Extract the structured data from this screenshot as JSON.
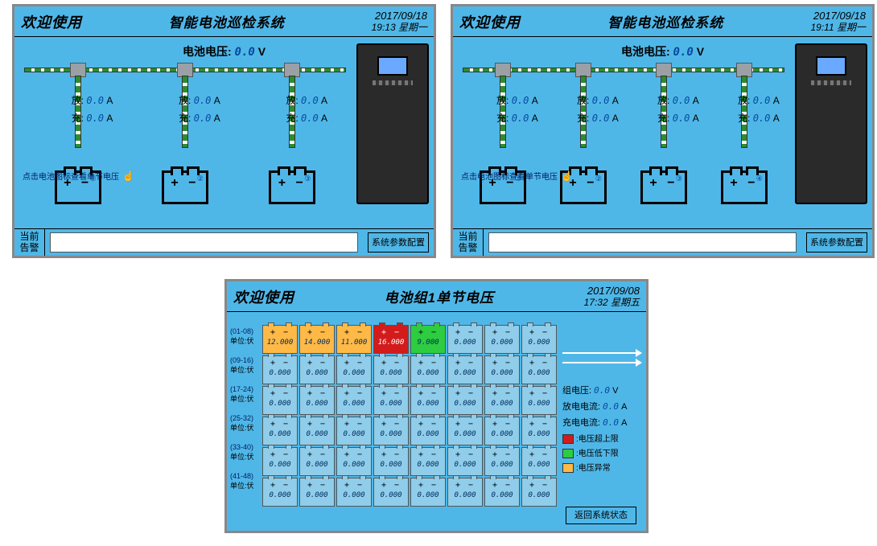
{
  "colors": {
    "panel_bg": "#4fb7e8",
    "bus_green": "#2e8b2e",
    "value_blue": "#064aa0",
    "warn": "#ffb947",
    "hi": "#d31b1b",
    "lo": "#2ecc40"
  },
  "panelA": {
    "welcome": "欢迎使用",
    "sysname": "智能电池巡检系统",
    "date": "2017/09/18",
    "time": "19:13",
    "weekday": "星期一",
    "voltage_label": "电池电压:",
    "voltage_value": "0.0",
    "voltage_unit": "V",
    "branch_count": 3,
    "branches": [
      {
        "idx": "①",
        "discharge_label": "放:",
        "discharge": "0.0",
        "charge_label": "充:",
        "charge": "0.0",
        "unit": "A"
      },
      {
        "idx": "②",
        "discharge_label": "放:",
        "discharge": "0.0",
        "charge_label": "充:",
        "charge": "0.0",
        "unit": "A"
      },
      {
        "idx": "③",
        "discharge_label": "放:",
        "discharge": "0.0",
        "charge_label": "充:",
        "charge": "0.0",
        "unit": "A"
      }
    ],
    "hint": "点击电池图标查看单节电压",
    "alarm_label_1": "当前",
    "alarm_label_2": "告警",
    "cfg_btn": "系统参数配置"
  },
  "panelB": {
    "welcome": "欢迎使用",
    "sysname": "智能电池巡检系统",
    "date": "2017/09/18",
    "time": "19:11",
    "weekday": "星期一",
    "voltage_label": "电池电压:",
    "voltage_value": "0.0",
    "voltage_unit": "V",
    "branch_count": 4,
    "branches": [
      {
        "idx": "①",
        "discharge_label": "放:",
        "discharge": "0.0",
        "charge_label": "充:",
        "charge": "0.0",
        "unit": "A"
      },
      {
        "idx": "②",
        "discharge_label": "放:",
        "discharge": "0.0",
        "charge_label": "充:",
        "charge": "0.0",
        "unit": "A"
      },
      {
        "idx": "③",
        "discharge_label": "放:",
        "discharge": "0.0",
        "charge_label": "充:",
        "charge": "0.0",
        "unit": "A"
      },
      {
        "idx": "④",
        "discharge_label": "放:",
        "discharge": "0.0",
        "charge_label": "充:",
        "charge": "0.0",
        "unit": "A"
      }
    ],
    "hint": "点击电池图标查看单节电压",
    "alarm_label_1": "当前",
    "alarm_label_2": "告警",
    "cfg_btn": "系统参数配置"
  },
  "panelC": {
    "welcome": "欢迎使用",
    "sysname": "电池组1单节电压",
    "date": "2017/09/08",
    "time": "17:32",
    "weekday": "星期五",
    "row_labels": [
      {
        "range": "(01-08)",
        "unit": "单位:伏"
      },
      {
        "range": "(09-16)",
        "unit": "单位:伏"
      },
      {
        "range": "(17-24)",
        "unit": "单位:伏"
      },
      {
        "range": "(25-32)",
        "unit": "单位:伏"
      },
      {
        "range": "(33-40)",
        "unit": "单位:伏"
      },
      {
        "range": "(41-48)",
        "unit": "单位:伏"
      }
    ],
    "cells": [
      [
        {
          "v": "12.000",
          "state": "warn"
        },
        {
          "v": "14.000",
          "state": "warn"
        },
        {
          "v": "11.000",
          "state": "warn"
        },
        {
          "v": "16.000",
          "state": "hi"
        },
        {
          "v": "9.000",
          "state": "lo"
        },
        {
          "v": "0.000",
          "state": "normal"
        },
        {
          "v": "0.000",
          "state": "normal"
        },
        {
          "v": "0.000",
          "state": "normal"
        }
      ],
      [
        {
          "v": "0.000",
          "state": "normal"
        },
        {
          "v": "0.000",
          "state": "normal"
        },
        {
          "v": "0.000",
          "state": "normal"
        },
        {
          "v": "0.000",
          "state": "normal"
        },
        {
          "v": "0.000",
          "state": "normal"
        },
        {
          "v": "0.000",
          "state": "normal"
        },
        {
          "v": "0.000",
          "state": "normal"
        },
        {
          "v": "0.000",
          "state": "normal"
        }
      ],
      [
        {
          "v": "0.000",
          "state": "normal"
        },
        {
          "v": "0.000",
          "state": "normal"
        },
        {
          "v": "0.000",
          "state": "normal"
        },
        {
          "v": "0.000",
          "state": "normal"
        },
        {
          "v": "0.000",
          "state": "normal"
        },
        {
          "v": "0.000",
          "state": "normal"
        },
        {
          "v": "0.000",
          "state": "normal"
        },
        {
          "v": "0.000",
          "state": "normal"
        }
      ],
      [
        {
          "v": "0.000",
          "state": "normal"
        },
        {
          "v": "0.000",
          "state": "normal"
        },
        {
          "v": "0.000",
          "state": "normal"
        },
        {
          "v": "0.000",
          "state": "normal"
        },
        {
          "v": "0.000",
          "state": "normal"
        },
        {
          "v": "0.000",
          "state": "normal"
        },
        {
          "v": "0.000",
          "state": "normal"
        },
        {
          "v": "0.000",
          "state": "normal"
        }
      ],
      [
        {
          "v": "0.000",
          "state": "normal"
        },
        {
          "v": "0.000",
          "state": "normal"
        },
        {
          "v": "0.000",
          "state": "normal"
        },
        {
          "v": "0.000",
          "state": "normal"
        },
        {
          "v": "0.000",
          "state": "normal"
        },
        {
          "v": "0.000",
          "state": "normal"
        },
        {
          "v": "0.000",
          "state": "normal"
        },
        {
          "v": "0.000",
          "state": "normal"
        }
      ],
      [
        {
          "v": "0.000",
          "state": "normal"
        },
        {
          "v": "0.000",
          "state": "normal"
        },
        {
          "v": "0.000",
          "state": "normal"
        },
        {
          "v": "0.000",
          "state": "normal"
        },
        {
          "v": "0.000",
          "state": "normal"
        },
        {
          "v": "0.000",
          "state": "normal"
        },
        {
          "v": "0.000",
          "state": "normal"
        },
        {
          "v": "0.000",
          "state": "normal"
        }
      ]
    ],
    "side": {
      "group_v_label": "组电压:",
      "group_v": "0.0",
      "group_v_unit": "V",
      "discharge_label": "放电电流:",
      "discharge": "0.0",
      "discharge_unit": "A",
      "charge_label": "充电电流:",
      "charge": "0.0",
      "charge_unit": "A"
    },
    "legend": {
      "hi": ":电压超上限",
      "lo": ":电压低下限",
      "warn": ":电压异常"
    },
    "back_btn": "返回系统状态"
  }
}
